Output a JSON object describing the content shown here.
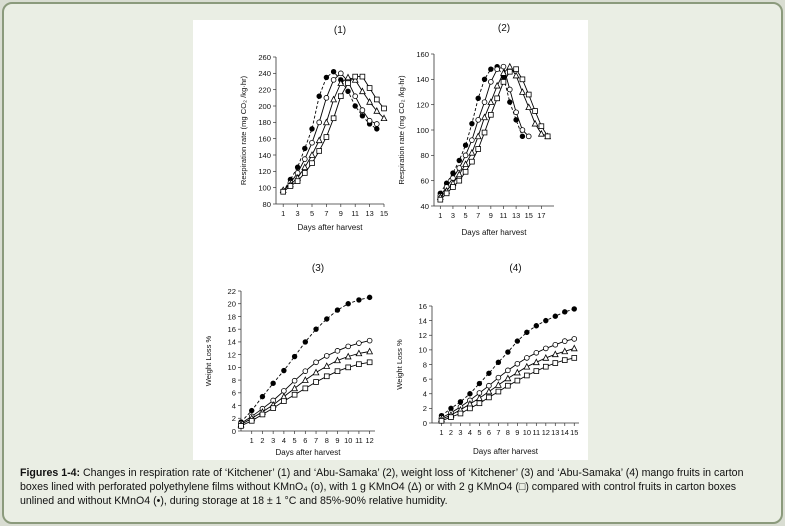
{
  "caption": {
    "label": "Figures 1-4:",
    "text": "Changes in respiration rate of ‘Kitchener’ (1) and ‘Abu-Samaka’ (2), weight loss of ‘Kitchener’ (3) and ‘Abu-Samaka’ (4) mango fruits in carton boxes lined with perforated polyethylene films without KMnO₄ (o), with 1 g KMnO4 (Δ) or with 2 g KMnO4 (□) compared with control fruits in carton boxes unlined and without KMnO4 (•), during storage at 18 ± 1 °C and 85%-90% relative humidity."
  },
  "chart_data": [
    {
      "id": "1",
      "type": "line",
      "title": "(1)",
      "xlabel": "Days after harvest",
      "ylabel": "Respiration rate (mg CO₂ /kg·hr)",
      "ylim": [
        80,
        260
      ],
      "yticks": [
        80,
        100,
        120,
        140,
        160,
        180,
        200,
        220,
        240,
        260
      ],
      "xlim": [
        0,
        15
      ],
      "xticks": [
        1,
        3,
        5,
        7,
        9,
        11,
        13,
        15
      ],
      "series": [
        {
          "marker": "filled-circle",
          "dashed": true,
          "x": [
            1,
            2,
            3,
            4,
            5,
            6,
            7,
            8,
            9,
            10,
            11,
            12,
            13,
            14
          ],
          "y": [
            95,
            110,
            125,
            148,
            172,
            212,
            235,
            242,
            232,
            218,
            200,
            188,
            178,
            172
          ]
        },
        {
          "marker": "open-circle",
          "x": [
            1,
            2,
            3,
            4,
            5,
            6,
            7,
            8,
            9,
            10,
            11,
            12,
            13,
            14
          ],
          "y": [
            96,
            106,
            118,
            135,
            155,
            180,
            210,
            232,
            240,
            230,
            212,
            195,
            182,
            178
          ]
        },
        {
          "marker": "open-triangle",
          "x": [
            1,
            2,
            3,
            4,
            5,
            6,
            7,
            8,
            9,
            10,
            11,
            12,
            13,
            14,
            15
          ],
          "y": [
            97,
            104,
            112,
            125,
            140,
            158,
            180,
            208,
            228,
            235,
            232,
            218,
            205,
            194,
            185
          ]
        },
        {
          "marker": "open-square",
          "x": [
            1,
            2,
            3,
            4,
            5,
            6,
            7,
            8,
            9,
            10,
            11,
            12,
            13,
            14,
            15
          ],
          "y": [
            95,
            102,
            108,
            118,
            130,
            145,
            162,
            185,
            212,
            228,
            236,
            236,
            222,
            208,
            197
          ]
        }
      ]
    },
    {
      "id": "2",
      "type": "line",
      "title": "(2)",
      "xlabel": "Days after harvest",
      "ylabel": "Respiration rate (mg CO₂ /kg·hr)",
      "ylim": [
        40,
        160
      ],
      "yticks": [
        40,
        60,
        80,
        100,
        120,
        140,
        160
      ],
      "xlim": [
        0,
        19
      ],
      "xticks": [
        1,
        3,
        5,
        7,
        9,
        11,
        13,
        15,
        17
      ],
      "series": [
        {
          "marker": "filled-circle",
          "dashed": true,
          "x": [
            1,
            2,
            3,
            4,
            5,
            6,
            7,
            8,
            9,
            10,
            11,
            12,
            13,
            14
          ],
          "y": [
            50,
            58,
            66,
            76,
            88,
            105,
            125,
            140,
            148,
            150,
            142,
            122,
            108,
            95
          ]
        },
        {
          "marker": "open-circle",
          "x": [
            1,
            2,
            3,
            4,
            5,
            6,
            7,
            8,
            9,
            10,
            11,
            12,
            13,
            14,
            15
          ],
          "y": [
            48,
            55,
            62,
            70,
            80,
            92,
            108,
            122,
            138,
            148,
            150,
            132,
            114,
            100,
            95
          ]
        },
        {
          "marker": "open-triangle",
          "x": [
            1,
            2,
            3,
            4,
            5,
            6,
            7,
            8,
            9,
            10,
            11,
            12,
            13,
            14,
            15,
            16,
            17,
            18
          ],
          "y": [
            47,
            52,
            58,
            65,
            73,
            82,
            95,
            110,
            122,
            135,
            145,
            150,
            143,
            130,
            118,
            105,
            97,
            95
          ]
        },
        {
          "marker": "open-square",
          "x": [
            1,
            2,
            3,
            4,
            5,
            6,
            7,
            8,
            9,
            10,
            11,
            12,
            13,
            14,
            15,
            16,
            17,
            18
          ],
          "y": [
            45,
            50,
            55,
            60,
            67,
            75,
            85,
            98,
            112,
            125,
            138,
            146,
            148,
            140,
            128,
            115,
            103,
            95
          ]
        }
      ]
    },
    {
      "id": "3",
      "type": "line",
      "title": "(3)",
      "xlabel": "Days after harvest",
      "ylabel": "Weight Loss %",
      "ylim": [
        0,
        22
      ],
      "yticks": [
        0,
        2,
        4,
        6,
        8,
        10,
        12,
        14,
        16,
        18,
        20,
        22
      ],
      "xlim": [
        0,
        12.5
      ],
      "xticks": [
        1,
        2,
        3,
        4,
        5,
        6,
        7,
        8,
        9,
        10,
        11,
        12
      ],
      "series": [
        {
          "marker": "filled-circle",
          "dashed": true,
          "x": [
            0,
            1,
            2,
            3,
            4,
            5,
            6,
            7,
            8,
            9,
            10,
            11,
            12
          ],
          "y": [
            1.4,
            3.2,
            5.4,
            7.5,
            9.5,
            11.7,
            14,
            16,
            17.6,
            19,
            20,
            20.6,
            21
          ]
        },
        {
          "marker": "open-circle",
          "x": [
            0,
            1,
            2,
            3,
            4,
            5,
            6,
            7,
            8,
            9,
            10,
            11,
            12
          ],
          "y": [
            1.2,
            2.3,
            3.5,
            4.8,
            6.3,
            7.9,
            9.4,
            10.8,
            11.8,
            12.6,
            13.3,
            13.8,
            14.2
          ]
        },
        {
          "marker": "open-triangle",
          "x": [
            0,
            1,
            2,
            3,
            4,
            5,
            6,
            7,
            8,
            9,
            10,
            11,
            12
          ],
          "y": [
            1.0,
            2.0,
            3.0,
            4.1,
            5.4,
            6.7,
            8.0,
            9.2,
            10.2,
            11.1,
            11.7,
            12.2,
            12.5
          ]
        },
        {
          "marker": "open-square",
          "x": [
            0,
            1,
            2,
            3,
            4,
            5,
            6,
            7,
            8,
            9,
            10,
            11,
            12
          ],
          "y": [
            0.8,
            1.6,
            2.6,
            3.6,
            4.7,
            5.7,
            6.7,
            7.7,
            8.6,
            9.4,
            10.0,
            10.5,
            10.8
          ]
        }
      ]
    },
    {
      "id": "4",
      "type": "line",
      "title": "(4)",
      "xlabel": "Days after harvest",
      "ylabel": "Weight Loss %",
      "ylim": [
        0,
        16
      ],
      "yticks": [
        0,
        2,
        4,
        6,
        8,
        10,
        12,
        14,
        16
      ],
      "xlim": [
        0,
        15.5
      ],
      "xticks": [
        1,
        2,
        3,
        4,
        5,
        6,
        7,
        8,
        9,
        10,
        11,
        12,
        13,
        14,
        15
      ],
      "series": [
        {
          "marker": "filled-circle",
          "dashed": true,
          "x": [
            1,
            2,
            3,
            4,
            5,
            6,
            7,
            8,
            9,
            10,
            11,
            12,
            13,
            14,
            15
          ],
          "y": [
            1.0,
            2.0,
            2.9,
            4.0,
            5.4,
            6.8,
            8.3,
            9.7,
            11.2,
            12.4,
            13.3,
            14.0,
            14.6,
            15.2,
            15.6
          ]
        },
        {
          "marker": "open-circle",
          "x": [
            1,
            2,
            3,
            4,
            5,
            6,
            7,
            8,
            9,
            10,
            11,
            12,
            13,
            14,
            15
          ],
          "y": [
            0.7,
            1.4,
            2.2,
            3.1,
            4.1,
            5.1,
            6.2,
            7.2,
            8.1,
            8.9,
            9.6,
            10.2,
            10.7,
            11.2,
            11.5
          ]
        },
        {
          "marker": "open-triangle",
          "x": [
            1,
            2,
            3,
            4,
            5,
            6,
            7,
            8,
            9,
            10,
            11,
            12,
            13,
            14,
            15
          ],
          "y": [
            0.5,
            1.1,
            1.8,
            2.6,
            3.4,
            4.3,
            5.2,
            6.1,
            6.9,
            7.7,
            8.3,
            8.9,
            9.4,
            9.8,
            10.2
          ]
        },
        {
          "marker": "open-square",
          "x": [
            1,
            2,
            3,
            4,
            5,
            6,
            7,
            8,
            9,
            10,
            11,
            12,
            13,
            14,
            15
          ],
          "y": [
            0.3,
            0.8,
            1.3,
            2.0,
            2.7,
            3.5,
            4.3,
            5.1,
            5.8,
            6.5,
            7.1,
            7.7,
            8.2,
            8.6,
            8.9
          ]
        }
      ]
    }
  ]
}
